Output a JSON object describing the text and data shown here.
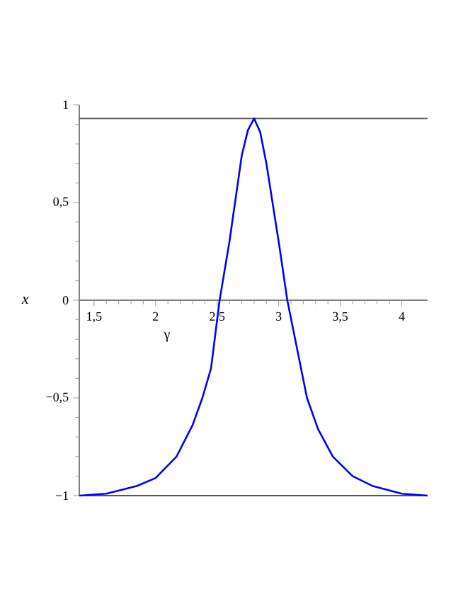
{
  "chart_data": {
    "type": "line",
    "xlabel": "γ",
    "ylabel": "x",
    "x": [
      1.38,
      1.6,
      1.85,
      2.0,
      2.17,
      2.3,
      2.38,
      2.45,
      2.52,
      2.6,
      2.7,
      2.75,
      2.8,
      2.85,
      2.9,
      3.0,
      3.07,
      3.15,
      3.23,
      3.32,
      3.44,
      3.6,
      3.76,
      4.0,
      4.21
    ],
    "series": [
      {
        "color": "#0000ff",
        "values": [
          -1,
          -0.99,
          -0.95,
          -0.91,
          -0.8,
          -0.64,
          -0.5,
          -0.35,
          0,
          0.3,
          0.74,
          0.87,
          0.93,
          0.86,
          0.7,
          0.3,
          0,
          -0.25,
          -0.5,
          -0.66,
          -0.8,
          -0.9,
          -0.95,
          -0.99,
          -1
        ]
      }
    ],
    "xlim": [
      1.38,
      4.21
    ],
    "ylim": [
      -1,
      1
    ],
    "xticks": [
      {
        "value": 1.5,
        "label": "1,5"
      },
      2,
      {
        "value": 2.5,
        "label": "2,5"
      },
      3,
      {
        "value": 3.5,
        "label": "3,5"
      },
      4
    ],
    "yticks": [
      {
        "value": -1,
        "label": "−1"
      },
      {
        "value": -0.5,
        "label": "−0,5"
      },
      0,
      {
        "value": 0.5,
        "label": "0,5"
      },
      1
    ],
    "ref_lines": [
      {
        "axis": "y",
        "value": 0.93,
        "color": "#555555"
      },
      {
        "axis": "y",
        "value": -1,
        "color": "#555555"
      }
    ],
    "line_style": "solid"
  }
}
